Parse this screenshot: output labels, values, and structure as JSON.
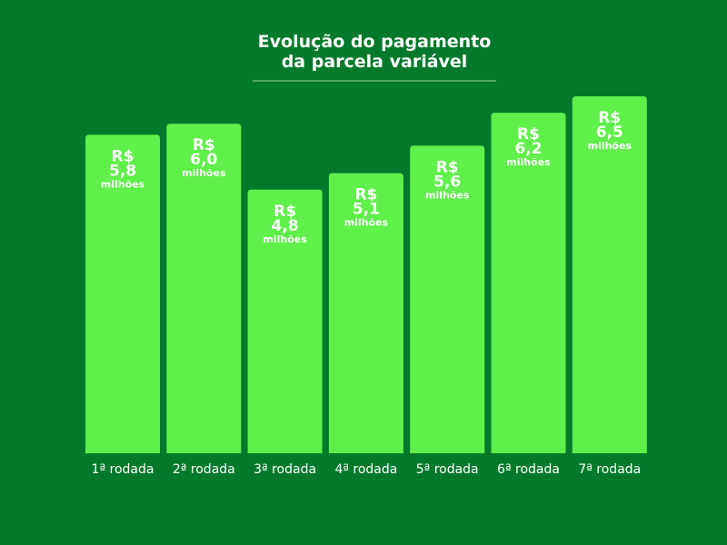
{
  "colors": {
    "background": "#037a2b",
    "bar": "#5ff04a",
    "text": "#ffffff",
    "divider": "#9bd19f"
  },
  "chart_data": {
    "type": "bar",
    "title_lines": [
      "Evolução do pagamento",
      "da parcela variável"
    ],
    "categories": [
      "1ª rodada",
      "2ª rodada",
      "3ª rodada",
      "4ª rodada",
      "5ª rodada",
      "6ª rodada",
      "7ª rodada"
    ],
    "values": [
      5.8,
      6.0,
      4.8,
      5.1,
      5.6,
      6.2,
      6.5
    ],
    "labels": [
      [
        "R$",
        "5,8",
        "milhões"
      ],
      [
        "R$",
        "6,0",
        "milhões"
      ],
      [
        "R$",
        "4,8",
        "milhões"
      ],
      [
        "R$",
        "5,1",
        "milhões"
      ],
      [
        "R$",
        "5,6",
        "milhões"
      ],
      [
        "R$",
        "6,2",
        "milhões"
      ],
      [
        "R$",
        "6,5",
        "milhões"
      ]
    ],
    "ylim": [
      0,
      6.5
    ],
    "grid": false,
    "legend": "none"
  }
}
